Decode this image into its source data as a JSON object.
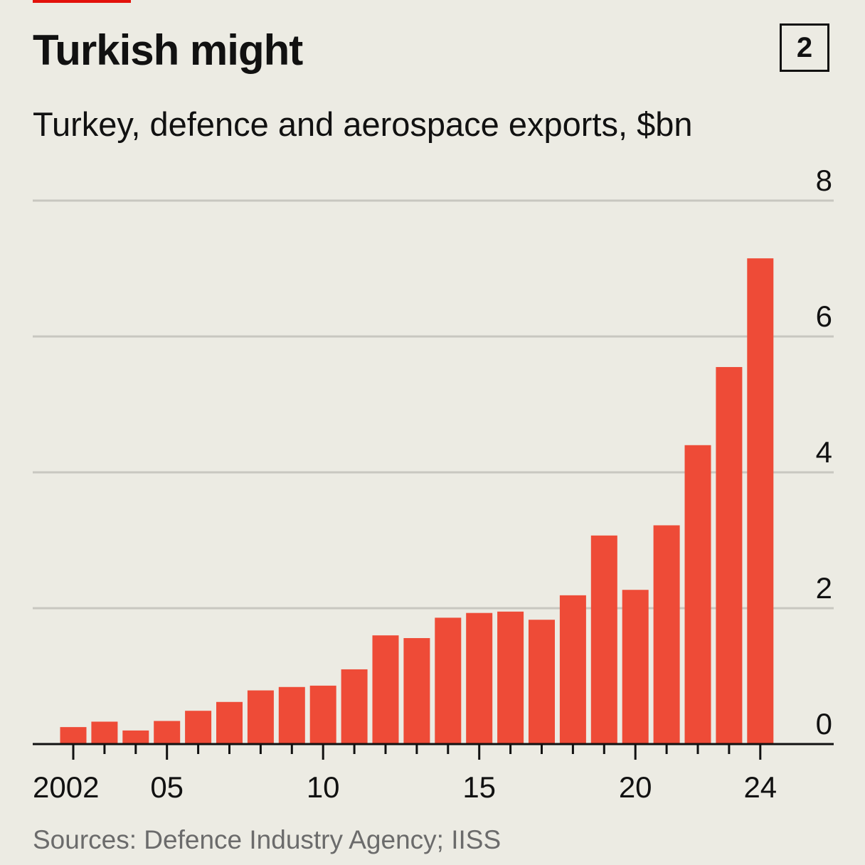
{
  "header": {
    "title": "Turkish might",
    "chart_number": "2",
    "subtitle": "Turkey, defence and aerospace exports, $bn"
  },
  "footer": {
    "source": "Sources: Defence Industry Agency; IISS"
  },
  "colors": {
    "bar": "#ee4b37",
    "gridline": "#c8c7c0",
    "axis": "#111111",
    "background": "#ecebe3"
  },
  "chart_data": {
    "type": "bar",
    "title": "Turkish might",
    "subtitle": "Turkey, defence and aerospace exports, $bn",
    "categories": [
      2002,
      2003,
      2004,
      2005,
      2006,
      2007,
      2008,
      2009,
      2010,
      2011,
      2012,
      2013,
      2014,
      2015,
      2016,
      2017,
      2018,
      2019,
      2020,
      2021,
      2022,
      2023,
      2024
    ],
    "values": [
      0.25,
      0.33,
      0.2,
      0.34,
      0.49,
      0.62,
      0.79,
      0.84,
      0.86,
      1.1,
      1.6,
      1.56,
      1.86,
      1.93,
      1.95,
      1.83,
      2.19,
      3.07,
      2.27,
      3.22,
      4.4,
      5.55,
      7.15
    ],
    "ylim": [
      0,
      8
    ],
    "y_ticks": [
      "0",
      "2",
      "4",
      "6",
      "8"
    ],
    "y_tick_values": [
      0,
      2,
      4,
      6,
      8
    ],
    "x_tick_labels": [
      {
        "year": 2002,
        "label": "2002"
      },
      {
        "year": 2005,
        "label": "05"
      },
      {
        "year": 2010,
        "label": "10"
      },
      {
        "year": 2015,
        "label": "15"
      },
      {
        "year": 2020,
        "label": "20"
      },
      {
        "year": 2024,
        "label": "24"
      }
    ],
    "y_axis_side": "right",
    "grid": true,
    "legend": "none"
  }
}
